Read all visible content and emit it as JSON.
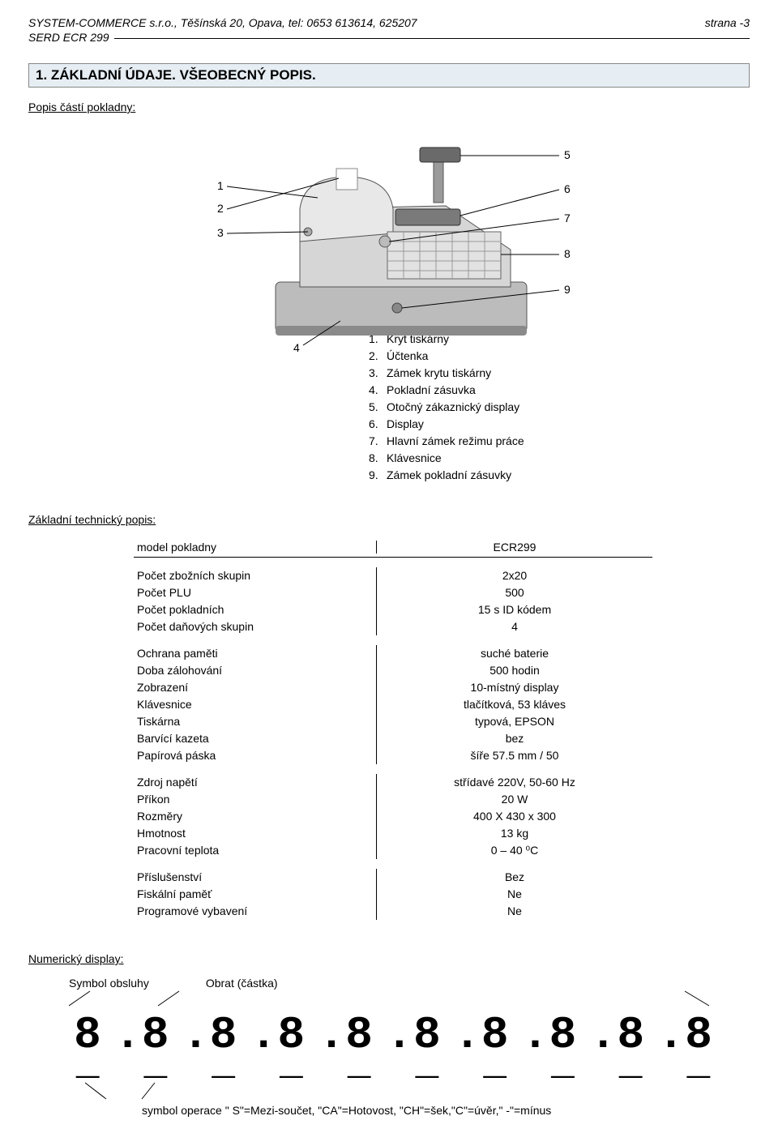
{
  "header": {
    "company_line": "SYSTEM-COMMERCE s.r.o., Těšínská 20, Opava, tel: 0653 613614, 625207",
    "page_label": "strana  -3",
    "product_line": "SERD ECR 299"
  },
  "section": {
    "title": "1. ZÁKLADNÍ ÚDAJE. VŠEOBECNÝ POPIS.",
    "parts_heading": "Popis částí pokladny:"
  },
  "diagram": {
    "labels": [
      "1",
      "2",
      "3",
      "4",
      "5",
      "6",
      "7",
      "8",
      "9"
    ],
    "bg_light": "#d6d6d6",
    "bg_mid": "#bcbcbc",
    "bg_dark": "#8a8a8a"
  },
  "parts": [
    {
      "n": "1.",
      "t": "Kryt tiskárny"
    },
    {
      "n": "2.",
      "t": "Účtenka"
    },
    {
      "n": "3.",
      "t": "Zámek krytu tiskárny"
    },
    {
      "n": "4.",
      "t": "Pokladní zásuvka"
    },
    {
      "n": "5.",
      "t": "Otočný zákaznický display"
    },
    {
      "n": "6.",
      "t": "Display"
    },
    {
      "n": "7.",
      "t": "Hlavní zámek režimu práce"
    },
    {
      "n": "8.",
      "t": "Klávesnice"
    },
    {
      "n": "9.",
      "t": "Zámek pokladní zásuvky"
    }
  ],
  "tech": {
    "heading": "Základní technický popis:",
    "model_label": "model pokladny",
    "model_value": "ECR299",
    "groups": [
      [
        {
          "l": "Počet zbožních skupin",
          "v": "2x20"
        },
        {
          "l": "Počet PLU",
          "v": "500"
        },
        {
          "l": "Počet pokladních",
          "v": "15 s ID kódem"
        },
        {
          "l": "Počet daňových skupin",
          "v": "4"
        }
      ],
      [
        {
          "l": "Ochrana paměti",
          "v": "suché baterie"
        },
        {
          "l": "Doba zálohování",
          "v": "500 hodin"
        },
        {
          "l": "Zobrazení",
          "v": "10-místný display"
        },
        {
          "l": "Klávesnice",
          "v": "tlačítková, 53 kláves"
        },
        {
          "l": "Tiskárna",
          "v": "typová, EPSON"
        },
        {
          "l": "Barvící kazeta",
          "v": "bez"
        },
        {
          "l": "Papírová páska",
          "v": "šíře 57.5 mm / 50"
        }
      ],
      [
        {
          "l": "Zdroj napětí",
          "v": "střídavé 220V, 50-60 Hz"
        },
        {
          "l": "Příkon",
          "v": "20 W"
        },
        {
          "l": "Rozměry",
          "v": "400 X 430 x 300"
        },
        {
          "l": "Hmotnost",
          "v": "13 kg"
        },
        {
          "l": "Pracovní teplota",
          "v": "0 – 40 ⁰C"
        }
      ],
      [
        {
          "l": "Příslušenství",
          "v": "Bez"
        },
        {
          "l": "Fiskální paměť",
          "v": "Ne"
        },
        {
          "l": "Programové vybavení",
          "v": "Ne"
        }
      ]
    ]
  },
  "numdisplay": {
    "heading": "Numerický display:",
    "lbl_obsluha": "Symbol  obsluhy",
    "lbl_obrat": "Obrat (částka)",
    "digits": [
      "8",
      "8",
      "8",
      "8",
      "8",
      "8",
      "8",
      "8",
      "8",
      "8"
    ],
    "separator": ".",
    "bottom_caption": "symbol operace \" S\"=Mezi-součet, \"CA\"=Hotovost, \"CH\"=šek,\"C\"=úvěr,\" -\"=mínus"
  }
}
